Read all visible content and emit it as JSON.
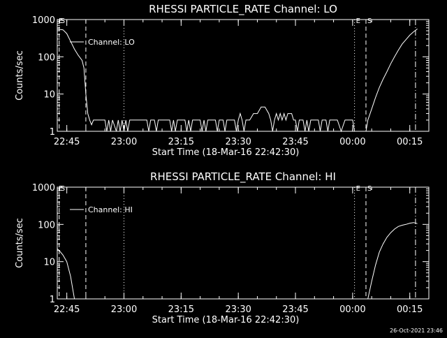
{
  "footer": {
    "date": "26-Oct-2021 23:46"
  },
  "chart_data": [
    {
      "type": "line",
      "title": "RHESSI PARTICLE_RATE Channel: LO",
      "xlabel": "Start Time (18-Mar-16 22:42:30)",
      "ylabel": "Counts/sec",
      "y_scale": "log",
      "ylim": [
        1,
        1000
      ],
      "xlim": [
        "22:42:30",
        "00:20:00"
      ],
      "x_tick_labels": [
        "22:45",
        "23:00",
        "23:15",
        "23:30",
        "23:45",
        "00:00",
        "00:15"
      ],
      "y_tick_labels": [
        "1",
        "10",
        "100",
        "1000"
      ],
      "legend": {
        "label": "Channel: LO",
        "placement": "upper-left"
      },
      "markers": [
        {
          "time": "22:42:30",
          "label": "E",
          "style": "dotted"
        },
        {
          "time": "22:43:00",
          "label": "S",
          "style": "dashed"
        },
        {
          "time": "22:50:00",
          "label": "",
          "style": "dashed"
        },
        {
          "time": "23:00:00",
          "label": "",
          "style": "dotted"
        },
        {
          "time": "00:00:30",
          "label": "E",
          "style": "dotted"
        },
        {
          "time": "00:03:30",
          "label": "S",
          "style": "dashed"
        },
        {
          "time": "00:16:30",
          "label": "",
          "style": "dashdot"
        }
      ],
      "series": [
        {
          "points": [
            [
              "22:42:30",
              550
            ],
            [
              "22:44:00",
              530
            ],
            [
              "22:45:00",
              420
            ],
            [
              "22:46:00",
              260
            ],
            [
              "22:47:00",
              160
            ],
            [
              "22:48:00",
              110
            ],
            [
              "22:49:00",
              80
            ],
            [
              "22:49:30",
              50
            ],
            [
              "22:50:00",
              10
            ],
            [
              "22:50:30",
              3
            ],
            [
              "22:51:00",
              2
            ],
            [
              "22:51:30",
              1.5
            ],
            [
              "22:52:00",
              2
            ],
            [
              "22:53:00",
              2
            ],
            [
              "22:54:00",
              2
            ],
            [
              "22:55:00",
              2
            ],
            [
              "22:55:30",
              1
            ],
            [
              "22:56:00",
              2
            ],
            [
              "22:56:30",
              1
            ],
            [
              "22:57:00",
              2
            ],
            [
              "22:58:00",
              1
            ],
            [
              "22:58:30",
              2
            ],
            [
              "22:59:00",
              1
            ],
            [
              "22:59:30",
              2
            ],
            [
              "23:00:00",
              1
            ],
            [
              "23:00:30",
              2
            ],
            [
              "23:01:00",
              1
            ],
            [
              "23:01:30",
              2
            ],
            [
              "23:02:00",
              2
            ],
            [
              "23:06:00",
              2
            ],
            [
              "23:06:30",
              1
            ],
            [
              "23:07:00",
              2
            ],
            [
              "23:08:00",
              2
            ],
            [
              "23:08:30",
              1
            ],
            [
              "23:09:00",
              2
            ],
            [
              "23:12:00",
              2
            ],
            [
              "23:12:30",
              1
            ],
            [
              "23:13:00",
              2
            ],
            [
              "23:13:30",
              1
            ],
            [
              "23:14:00",
              2
            ],
            [
              "23:16:00",
              2
            ],
            [
              "23:16:30",
              1
            ],
            [
              "23:17:00",
              2
            ],
            [
              "23:17:30",
              1
            ],
            [
              "23:18:00",
              2
            ],
            [
              "23:20:00",
              2
            ],
            [
              "23:20:30",
              1
            ],
            [
              "23:21:00",
              2
            ],
            [
              "23:21:30",
              1
            ],
            [
              "23:22:00",
              2
            ],
            [
              "23:24:00",
              2
            ],
            [
              "23:24:30",
              1
            ],
            [
              "23:25:00",
              2
            ],
            [
              "23:26:00",
              2
            ],
            [
              "23:26:30",
              1
            ],
            [
              "23:27:00",
              2
            ],
            [
              "23:29:00",
              2
            ],
            [
              "23:29:30",
              1
            ],
            [
              "23:30:00",
              2
            ],
            [
              "23:30:30",
              3
            ],
            [
              "23:31:00",
              2
            ],
            [
              "23:31:30",
              1
            ],
            [
              "23:32:00",
              2
            ],
            [
              "23:33:00",
              2
            ],
            [
              "23:34:00",
              3
            ],
            [
              "23:35:00",
              3
            ],
            [
              "23:36:00",
              4.5
            ],
            [
              "23:37:00",
              4.5
            ],
            [
              "23:38:00",
              3
            ],
            [
              "23:38:30",
              2
            ],
            [
              "23:39:00",
              1
            ],
            [
              "23:39:30",
              2
            ],
            [
              "23:40:00",
              3
            ],
            [
              "23:40:30",
              2
            ],
            [
              "23:41:00",
              3
            ],
            [
              "23:41:30",
              2
            ],
            [
              "23:42:00",
              3
            ],
            [
              "23:42:30",
              2
            ],
            [
              "23:43:00",
              3
            ],
            [
              "23:44:00",
              3
            ],
            [
              "23:44:30",
              2
            ],
            [
              "23:45:00",
              2
            ],
            [
              "23:45:30",
              1
            ],
            [
              "23:46:00",
              2
            ],
            [
              "23:47:00",
              2
            ],
            [
              "23:47:30",
              1
            ],
            [
              "23:48:00",
              2
            ],
            [
              "23:48:30",
              1
            ],
            [
              "23:49:00",
              2
            ],
            [
              "23:51:00",
              2
            ],
            [
              "23:51:30",
              1
            ],
            [
              "23:52:00",
              2
            ],
            [
              "23:53:00",
              2
            ],
            [
              "23:53:30",
              1
            ],
            [
              "23:54:00",
              2
            ],
            [
              "23:56:00",
              2
            ],
            [
              "23:57:00",
              1
            ],
            [
              "23:58:00",
              2
            ],
            [
              "23:59:00",
              2
            ],
            [
              "00:00:00",
              2
            ],
            [
              "00:00:30",
              1
            ]
          ]
        },
        {
          "points": [
            [
              "00:03:30",
              1
            ],
            [
              "00:04:00",
              2
            ],
            [
              "00:05:00",
              4
            ],
            [
              "00:06:00",
              8
            ],
            [
              "00:07:00",
              15
            ],
            [
              "00:08:00",
              25
            ],
            [
              "00:09:00",
              40
            ],
            [
              "00:10:00",
              65
            ],
            [
              "00:11:00",
              100
            ],
            [
              "00:12:00",
              150
            ],
            [
              "00:13:00",
              220
            ],
            [
              "00:14:00",
              290
            ],
            [
              "00:15:00",
              380
            ],
            [
              "00:16:00",
              470
            ],
            [
              "00:17:00",
              560
            ]
          ]
        }
      ]
    },
    {
      "type": "line",
      "title": "RHESSI PARTICLE_RATE Channel: HI",
      "xlabel": "Start Time (18-Mar-16 22:42:30)",
      "ylabel": "Counts/sec",
      "y_scale": "log",
      "ylim": [
        1,
        1000
      ],
      "xlim": [
        "22:42:30",
        "00:20:00"
      ],
      "x_tick_labels": [
        "22:45",
        "23:00",
        "23:15",
        "23:30",
        "23:45",
        "00:00",
        "00:15"
      ],
      "y_tick_labels": [
        "1",
        "10",
        "100",
        "1000"
      ],
      "legend": {
        "label": "Channel: HI",
        "placement": "upper-left"
      },
      "markers": [
        {
          "time": "22:42:30",
          "label": "E",
          "style": "dotted"
        },
        {
          "time": "22:43:00",
          "label": "S",
          "style": "dashed"
        },
        {
          "time": "22:50:00",
          "label": "",
          "style": "dashed"
        },
        {
          "time": "23:00:00",
          "label": "",
          "style": "dotted"
        },
        {
          "time": "00:00:30",
          "label": "E",
          "style": "dotted"
        },
        {
          "time": "00:03:30",
          "label": "S",
          "style": "dashed"
        },
        {
          "time": "00:16:30",
          "label": "",
          "style": "dashdot"
        }
      ],
      "series": [
        {
          "points": [
            [
              "22:42:30",
              22
            ],
            [
              "22:43:00",
              20
            ],
            [
              "22:44:00",
              15
            ],
            [
              "22:45:00",
              10
            ],
            [
              "22:46:00",
              4
            ],
            [
              "22:46:30",
              2
            ],
            [
              "22:47:00",
              1
            ]
          ]
        },
        {
          "points": [
            [
              "00:04:00",
              1
            ],
            [
              "00:05:00",
              3
            ],
            [
              "00:06:00",
              8
            ],
            [
              "00:07:00",
              18
            ],
            [
              "00:08:00",
              30
            ],
            [
              "00:09:00",
              45
            ],
            [
              "00:10:00",
              60
            ],
            [
              "00:11:00",
              75
            ],
            [
              "00:12:00",
              88
            ],
            [
              "00:13:00",
              95
            ],
            [
              "00:14:00",
              100
            ],
            [
              "00:15:00",
              108
            ],
            [
              "00:16:00",
              112
            ],
            [
              "00:17:00",
              105
            ]
          ]
        }
      ]
    }
  ]
}
